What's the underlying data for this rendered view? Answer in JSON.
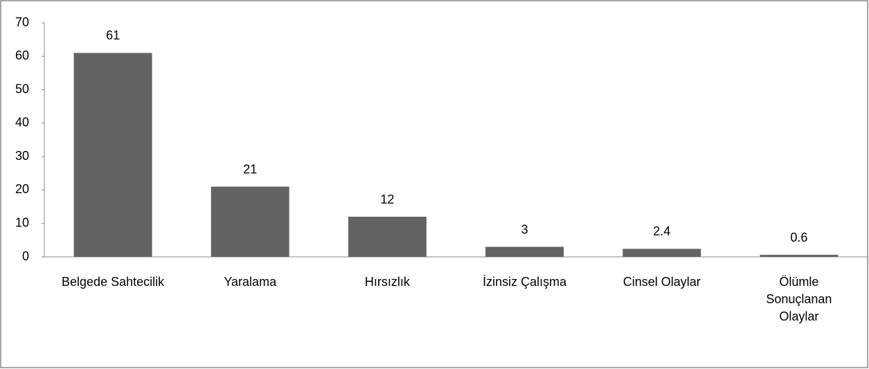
{
  "chart_data": {
    "type": "bar",
    "categories": [
      "Belgede Sahtecilik",
      "Yaralama",
      "Hırsızlık",
      "İzinsiz Çalışma",
      "Cinsel Olaylar",
      "Ölümle\nSonuçlanan\nOlaylar"
    ],
    "values": [
      61,
      21,
      12,
      3,
      2.4,
      0.6
    ],
    "color": "#636363",
    "ylim": [
      0,
      70
    ],
    "yticks": [
      0,
      10,
      20,
      30,
      40,
      50,
      60,
      70
    ],
    "grid": false
  }
}
